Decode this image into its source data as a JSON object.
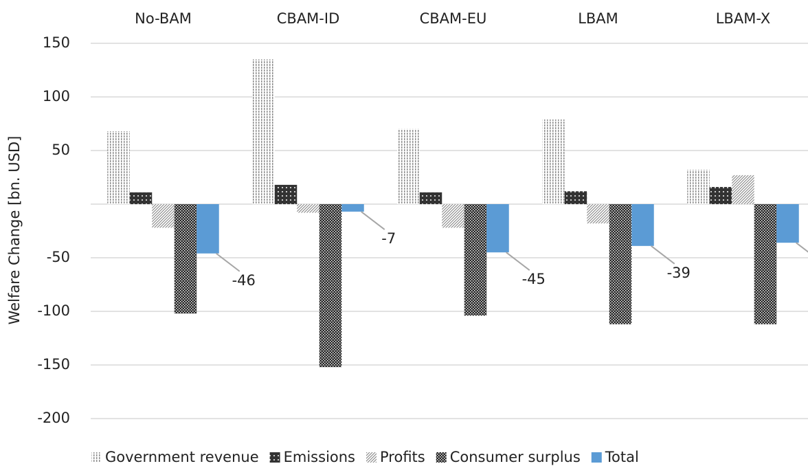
{
  "chart_data": {
    "type": "bar",
    "y_label": "Welfare Change [bn. USD]",
    "categories": [
      "No-BAM",
      "CBAM-ID",
      "CBAM-EU",
      "LBAM",
      "LBAM-X"
    ],
    "series": [
      {
        "name": "Government revenue",
        "color": "#8c8c8c",
        "values": [
          68,
          135,
          70,
          79,
          32
        ]
      },
      {
        "name": "Emissions",
        "color": "#333333",
        "values": [
          11,
          18,
          11,
          12,
          16
        ]
      },
      {
        "name": "Profits",
        "color": "#808080",
        "values": [
          -22,
          -8,
          -22,
          -18,
          27
        ]
      },
      {
        "name": "Consumer surplus",
        "color": "#262626",
        "values": [
          -102,
          -152,
          -104,
          -112,
          -112
        ]
      },
      {
        "name": "Total",
        "color": "#5b9bd5",
        "values": [
          -46,
          -7,
          -45,
          -39,
          -36
        ],
        "data_labels": true
      }
    ],
    "ylim": [
      -200,
      150
    ],
    "yticks": [
      -200,
      -150,
      -100,
      -50,
      50,
      100,
      150
    ],
    "grid": true
  }
}
